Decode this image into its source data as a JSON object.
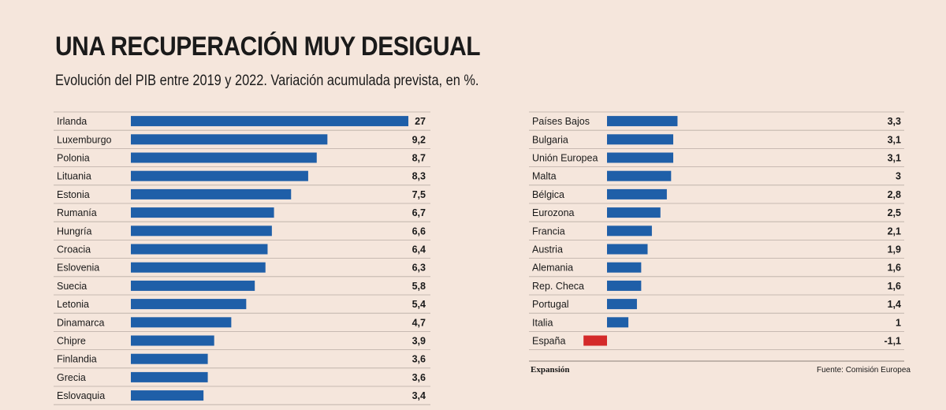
{
  "title": "UNA RECUPERACIÓN MUY DESIGUAL",
  "subtitle": "Evolución del PIB entre 2019 y 2022. Variación acumulada prevista, en %.",
  "source": "Fuente: Comisión Europea",
  "brand": "Expansión",
  "colors": {
    "positive": "#1f5fa8",
    "negative": "#d42a2a",
    "divider": "#b9aca4"
  },
  "chart_data": [
    {
      "type": "bar",
      "orientation": "horizontal",
      "categories": [
        "Irlanda",
        "Luxemburgo",
        "Polonia",
        "Lituania",
        "Estonia",
        "Rumanía",
        "Hungría",
        "Croacia",
        "Eslovenia",
        "Suecia",
        "Letonia",
        "Dinamarca",
        "Chipre",
        "Finlandia",
        "Grecia",
        "Eslovaquia"
      ],
      "values": [
        27,
        9.2,
        8.7,
        8.3,
        7.5,
        6.7,
        6.6,
        6.4,
        6.3,
        5.8,
        5.4,
        4.7,
        3.9,
        3.6,
        3.6,
        3.4
      ],
      "value_labels": [
        "27",
        "9,2",
        "8,7",
        "8,3",
        "7,5",
        "6,7",
        "6,6",
        "6,4",
        "6,3",
        "5,8",
        "5,4",
        "4,7",
        "3,9",
        "3,6",
        "3,6",
        "3,4"
      ],
      "note": "bar for Irlanda drawn truncated (broken scale)"
    },
    {
      "type": "bar",
      "orientation": "horizontal",
      "categories": [
        "Países Bajos",
        "Bulgaria",
        "Unión Europea",
        "Malta",
        "Bélgica",
        "Eurozona",
        "Francia",
        "Austria",
        "Alemania",
        "Rep. Checa",
        "Portugal",
        "Italia",
        "España"
      ],
      "values": [
        3.3,
        3.1,
        3.1,
        3,
        2.8,
        2.5,
        2.1,
        1.9,
        1.6,
        1.6,
        1.4,
        1,
        -1.1
      ],
      "value_labels": [
        "3,3",
        "3,1",
        "3,1",
        "3",
        "2,8",
        "2,5",
        "2,1",
        "1,9",
        "1,6",
        "1,6",
        "1,4",
        "1",
        "-1,1"
      ]
    }
  ]
}
